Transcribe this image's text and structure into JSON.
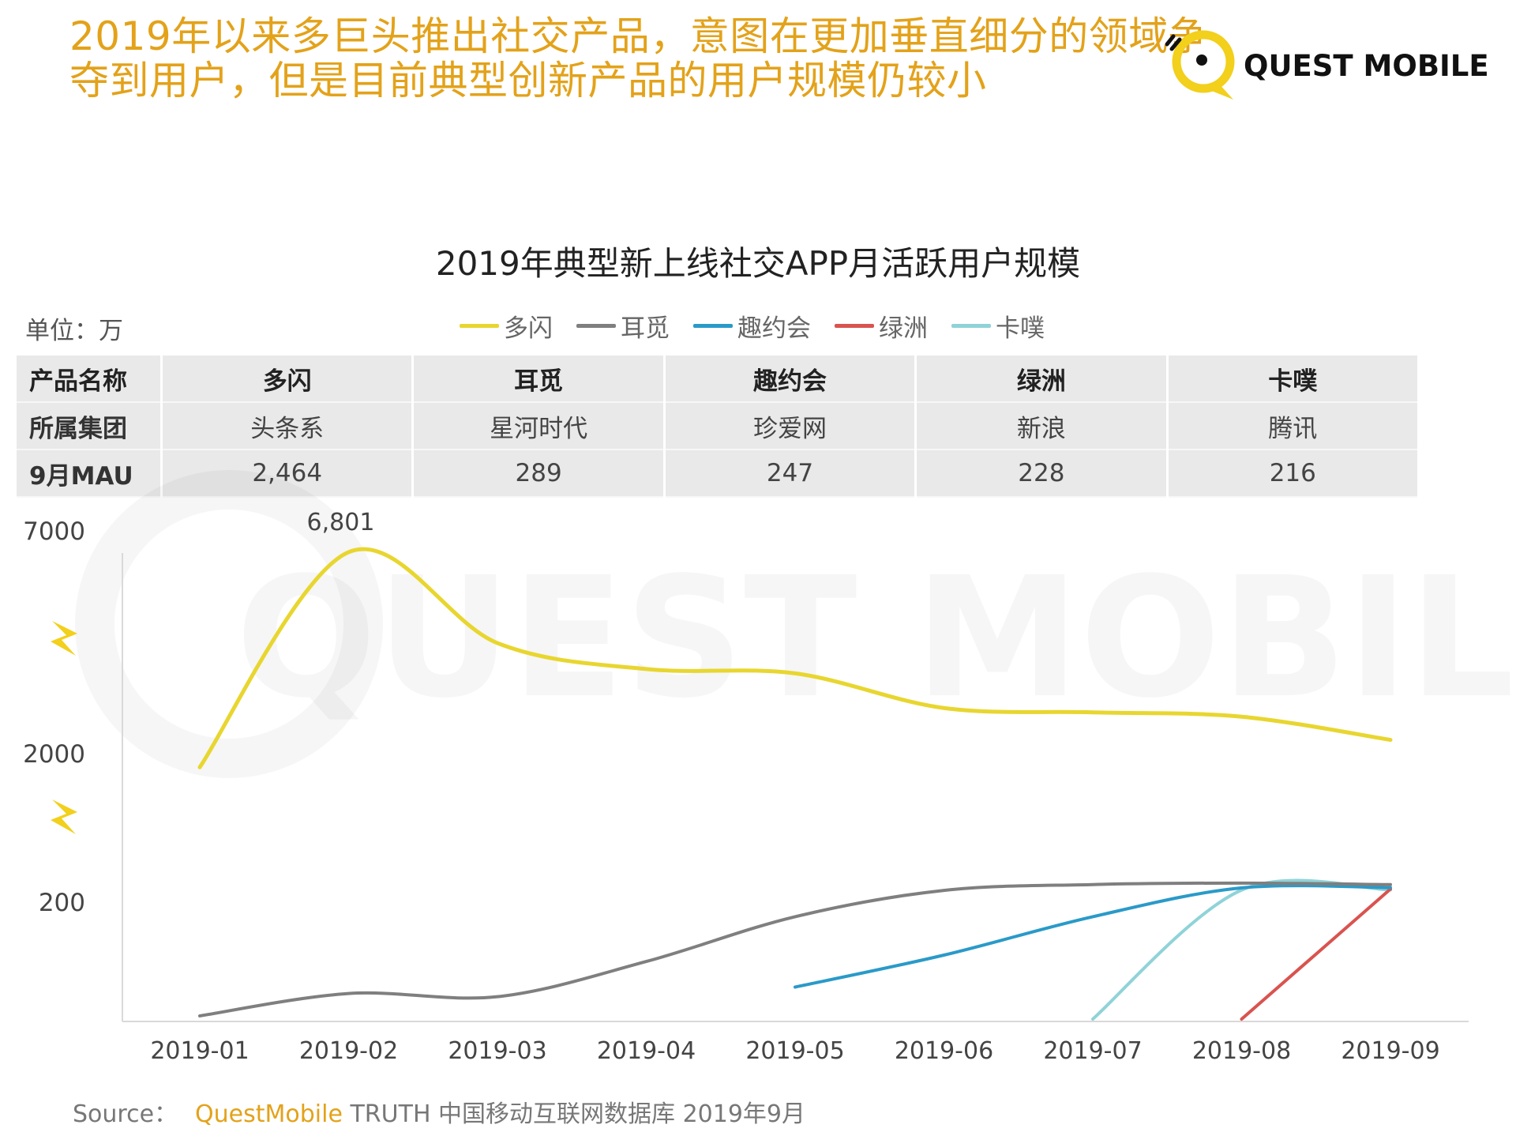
{
  "headline": {
    "line1": "2019年以来多巨头推出社交产品，意图在更加垂直细分的领域争",
    "line2": "夺到用户，但是目前典型创新产品的用户规模仍较小"
  },
  "logo": {
    "text": "QUEST MOBILE",
    "watermark": "QUEST MOBILE"
  },
  "unit_label": "单位：万",
  "table": {
    "row_headers": [
      "产品名称",
      "所属集团",
      "9月MAU"
    ],
    "products": [
      {
        "name": "多闪",
        "group": "头条系",
        "mau": "2,464"
      },
      {
        "name": "耳觅",
        "group": "星河时代",
        "mau": "289"
      },
      {
        "name": "趣约会",
        "group": "珍爱网",
        "mau": "247"
      },
      {
        "name": "绿洲",
        "group": "新浪",
        "mau": "228"
      },
      {
        "name": "卡噗",
        "group": "腾讯",
        "mau": "216"
      }
    ]
  },
  "colors": {
    "headline": "#e3a21a",
    "duoshan": "#e8d630",
    "ermi": "#7f7f7f",
    "quyuehui": "#2a9ac8",
    "lvzhou": "#d9534f",
    "kapu": "#8fd3d8",
    "axis": "#d9d9d9",
    "break_mark": "#f2d01b"
  },
  "chart_data": {
    "type": "line",
    "title": "2019年典型新上线社交APP月活跃用户规模",
    "ylabel": "单位：万",
    "y_axis": "broken scale (axis breaks between 200–2000 and 2000–7000)",
    "y_ticks": [
      7000,
      2000,
      200
    ],
    "categories": [
      "2019-01",
      "2019-02",
      "2019-03",
      "2019-04",
      "2019-05",
      "2019-06",
      "2019-07",
      "2019-08",
      "2019-09"
    ],
    "series": [
      {
        "name": "多闪",
        "color": "#e8d630",
        "values": [
          1900,
          6801,
          4700,
          4100,
          4000,
          3200,
          3100,
          3000,
          2464
        ]
      },
      {
        "name": "耳觅",
        "color": "#7f7f7f",
        "values": [
          5,
          40,
          35,
          90,
          160,
          210,
          290,
          310,
          289
        ]
      },
      {
        "name": "趣约会",
        "color": "#2a9ac8",
        "values": [
          null,
          null,
          null,
          null,
          50,
          100,
          160,
          245,
          247
        ]
      },
      {
        "name": "绿洲",
        "color": "#d9534f",
        "values": [
          null,
          null,
          null,
          null,
          null,
          null,
          null,
          0,
          228
        ]
      },
      {
        "name": "卡噗",
        "color": "#8fd3d8",
        "values": [
          null,
          null,
          null,
          null,
          null,
          null,
          0,
          215,
          216
        ]
      }
    ],
    "annotations": [
      {
        "category": "2019-02",
        "series": "多闪",
        "text": "6,801"
      }
    ],
    "legend": "top-center",
    "grid": false
  },
  "footer": {
    "source_label": "Source：",
    "brand": "QuestMobile",
    "text": "TRUTH 中国移动互联网数据库 2019年9月"
  }
}
